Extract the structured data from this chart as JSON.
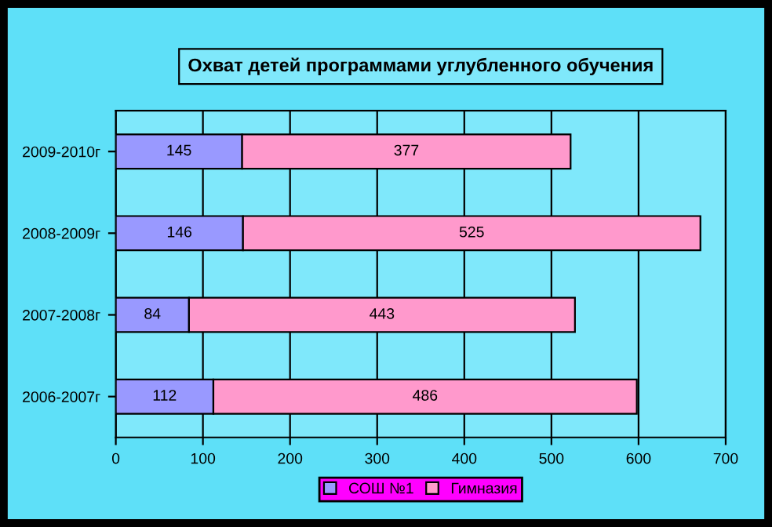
{
  "chart_data": {
    "type": "bar",
    "orientation": "horizontal",
    "stacked": true,
    "title": "Охват детей программами углубленного обучения",
    "categories": [
      "2009-2010г",
      "2008-2009г",
      "2007-2008г",
      "2006-2007г"
    ],
    "series": [
      {
        "name": "СОШ №1",
        "color": "#9999ff",
        "values": [
          145,
          146,
          84,
          112
        ]
      },
      {
        "name": "Гимназия",
        "color": "#ff99cc",
        "values": [
          377,
          525,
          443,
          486
        ]
      }
    ],
    "xlim": [
      0,
      700
    ],
    "xticks": [
      0,
      100,
      200,
      300,
      400,
      500,
      600,
      700
    ],
    "grid": "x",
    "legend": "bottom",
    "data_labels": true
  }
}
